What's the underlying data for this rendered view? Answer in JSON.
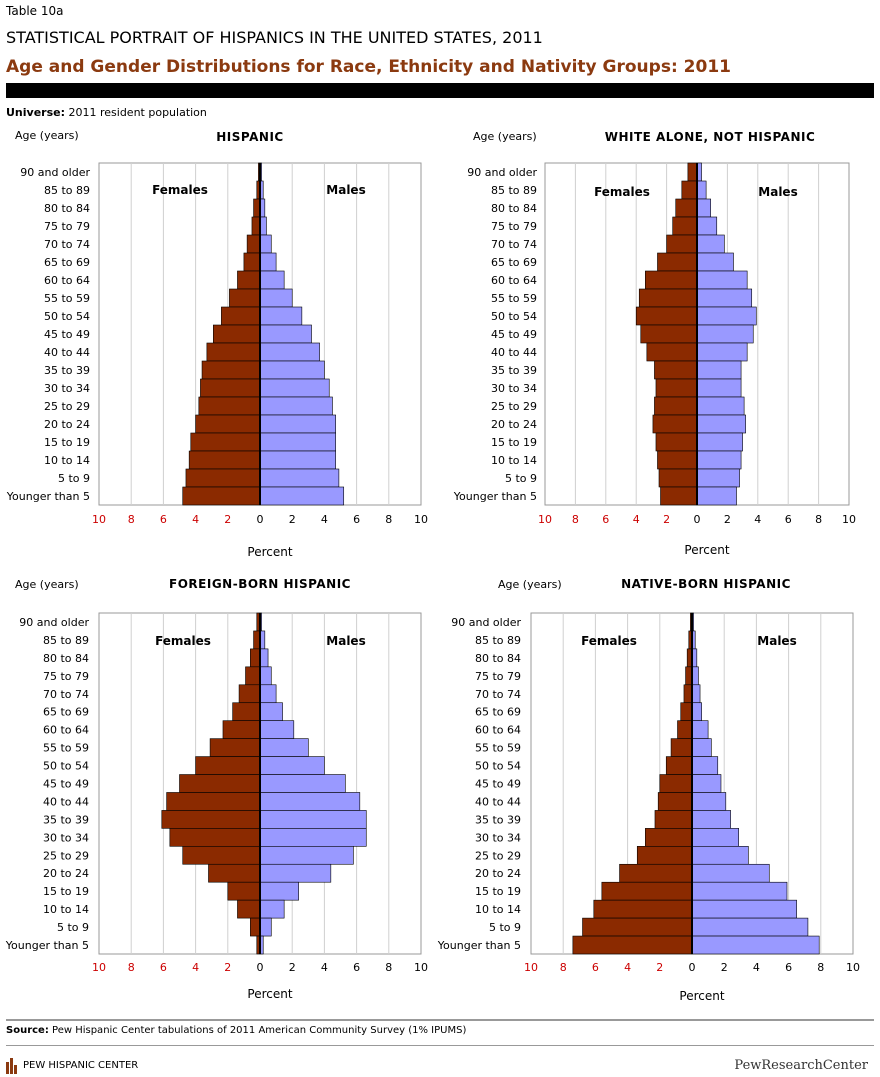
{
  "header": {
    "table_label": "Table 10a",
    "title": "STATISTICAL PORTRAIT OF HISPANICS IN THE UNITED STATES, 2011",
    "subtitle": "Age and Gender Distributions for Race, Ethnicity and Nativity Groups: 2011",
    "universe_label": "Universe:",
    "universe_value": " 2011 resident population"
  },
  "footer": {
    "source_label": "Source:",
    "source_text": " Pew Hispanic Center tabulations of 2011 American Community Survey (1% IPUMS)",
    "logo_text": "PEW HISPANIC CENTER",
    "brand": "PewResearchCenter"
  },
  "colors": {
    "female": "#8b2a00",
    "male": "#9999ff",
    "tick_neg": "#cc0000",
    "axis": "#000000",
    "grid": "#d0d0d0",
    "title_bar": "#000000",
    "subtitle": "#8b3a10"
  },
  "chart_data": [
    {
      "type": "bar",
      "title": "HISPANIC",
      "ylabel": "Age (years)",
      "xlabel": "Percent",
      "female_label": "Females",
      "male_label": "Males",
      "xlim": [
        -10,
        10
      ],
      "xticks": [
        "10",
        "8",
        "6",
        "4",
        "2",
        "0",
        "2",
        "4",
        "6",
        "8",
        "10"
      ],
      "categories": [
        "90 and older",
        "85 to 89",
        "80 to 84",
        "75 to 79",
        "70 to 74",
        "65 to 69",
        "60 to 64",
        "55 to 59",
        "50 to 54",
        "45 to 49",
        "40 to 44",
        "35 to 39",
        "30 to 34",
        "25 to 29",
        "20 to 24",
        "15 to 19",
        "10 to 14",
        "5 to 9",
        "Younger than 5"
      ],
      "series": [
        {
          "name": "Females",
          "values": [
            0.1,
            0.2,
            0.4,
            0.5,
            0.8,
            1.0,
            1.4,
            1.9,
            2.4,
            2.9,
            3.3,
            3.6,
            3.7,
            3.8,
            4.0,
            4.3,
            4.4,
            4.6,
            4.8
          ]
        },
        {
          "name": "Males",
          "values": [
            0.1,
            0.2,
            0.3,
            0.4,
            0.7,
            1.0,
            1.5,
            2.0,
            2.6,
            3.2,
            3.7,
            4.0,
            4.3,
            4.5,
            4.7,
            4.7,
            4.7,
            4.9,
            5.2
          ]
        }
      ]
    },
    {
      "type": "bar",
      "title": "WHITE ALONE, NOT HISPANIC",
      "ylabel": "Age (years)",
      "xlabel": "Percent",
      "female_label": "Females",
      "male_label": "Males",
      "xlim": [
        -10,
        10
      ],
      "xticks": [
        "10",
        "8",
        "6",
        "4",
        "2",
        "0",
        "2",
        "4",
        "6",
        "8",
        "10"
      ],
      "categories": [
        "90 and older",
        "85 to 89",
        "80 to 84",
        "75 to 79",
        "70 to 74",
        "65 to 69",
        "60 to 64",
        "55 to 59",
        "50 to 54",
        "45 to 49",
        "40 to 44",
        "35 to 39",
        "30 to 34",
        "25 to 29",
        "20 to 24",
        "15 to 19",
        "10 to 14",
        "5 to 9",
        "Younger than 5"
      ],
      "series": [
        {
          "name": "Females",
          "values": [
            0.6,
            1.0,
            1.4,
            1.6,
            2.0,
            2.6,
            3.4,
            3.8,
            4.0,
            3.7,
            3.3,
            2.8,
            2.7,
            2.8,
            2.9,
            2.7,
            2.6,
            2.5,
            2.4
          ]
        },
        {
          "name": "Males",
          "values": [
            0.3,
            0.6,
            0.9,
            1.3,
            1.8,
            2.4,
            3.3,
            3.6,
            3.9,
            3.7,
            3.3,
            2.9,
            2.9,
            3.1,
            3.2,
            3.0,
            2.9,
            2.8,
            2.6
          ]
        }
      ]
    },
    {
      "type": "bar",
      "title": "FOREIGN-BORN HISPANIC",
      "ylabel": "Age (years)",
      "xlabel": "Percent",
      "female_label": "Females",
      "male_label": "Males",
      "xlim": [
        -10,
        10
      ],
      "xticks": [
        "10",
        "8",
        "6",
        "4",
        "2",
        "0",
        "2",
        "4",
        "6",
        "8",
        "10"
      ],
      "categories": [
        "90 and older",
        "85 to 89",
        "80 to 84",
        "75 to 79",
        "70 to 74",
        "65 to 69",
        "60 to 64",
        "55 to 59",
        "50 to 54",
        "45 to 49",
        "40 to 44",
        "35 to 39",
        "30 to 34",
        "25 to 29",
        "20 to 24",
        "15 to 19",
        "10 to 14",
        "5 to 9",
        "Younger than 5"
      ],
      "series": [
        {
          "name": "Females",
          "values": [
            0.2,
            0.4,
            0.6,
            0.9,
            1.3,
            1.7,
            2.3,
            3.1,
            4.0,
            5.0,
            5.8,
            6.1,
            5.6,
            4.8,
            3.2,
            2.0,
            1.4,
            0.6,
            0.2
          ]
        },
        {
          "name": "Males",
          "values": [
            0.1,
            0.3,
            0.5,
            0.7,
            1.0,
            1.4,
            2.1,
            3.0,
            4.0,
            5.3,
            6.2,
            6.6,
            6.6,
            5.8,
            4.4,
            2.4,
            1.5,
            0.7,
            0.2
          ]
        }
      ]
    },
    {
      "type": "bar",
      "title": "NATIVE-BORN HISPANIC",
      "ylabel": "Age (years)",
      "xlabel": "Percent",
      "female_label": "Females",
      "male_label": "Males",
      "xlim": [
        -10,
        10
      ],
      "xticks": [
        "10",
        "8",
        "6",
        "4",
        "2",
        "0",
        "2",
        "4",
        "6",
        "8",
        "10"
      ],
      "categories": [
        "90 and older",
        "85 to 89",
        "80 to 84",
        "75 to 79",
        "70 to 74",
        "65 to 69",
        "60 to 64",
        "55 to 59",
        "50 to 54",
        "45 to 49",
        "40 to 44",
        "35 to 39",
        "30 to 34",
        "25 to 29",
        "20 to 24",
        "15 to 19",
        "10 to 14",
        "5 to 9",
        "Younger than 5"
      ],
      "series": [
        {
          "name": "Females",
          "values": [
            0.1,
            0.2,
            0.3,
            0.4,
            0.5,
            0.7,
            0.9,
            1.3,
            1.6,
            2.0,
            2.1,
            2.3,
            2.9,
            3.4,
            4.5,
            5.6,
            6.1,
            6.8,
            7.4
          ]
        },
        {
          "name": "Males",
          "values": [
            0.1,
            0.2,
            0.3,
            0.4,
            0.5,
            0.6,
            1.0,
            1.2,
            1.6,
            1.8,
            2.1,
            2.4,
            2.9,
            3.5,
            4.8,
            5.9,
            6.5,
            7.2,
            7.9
          ]
        }
      ]
    }
  ]
}
